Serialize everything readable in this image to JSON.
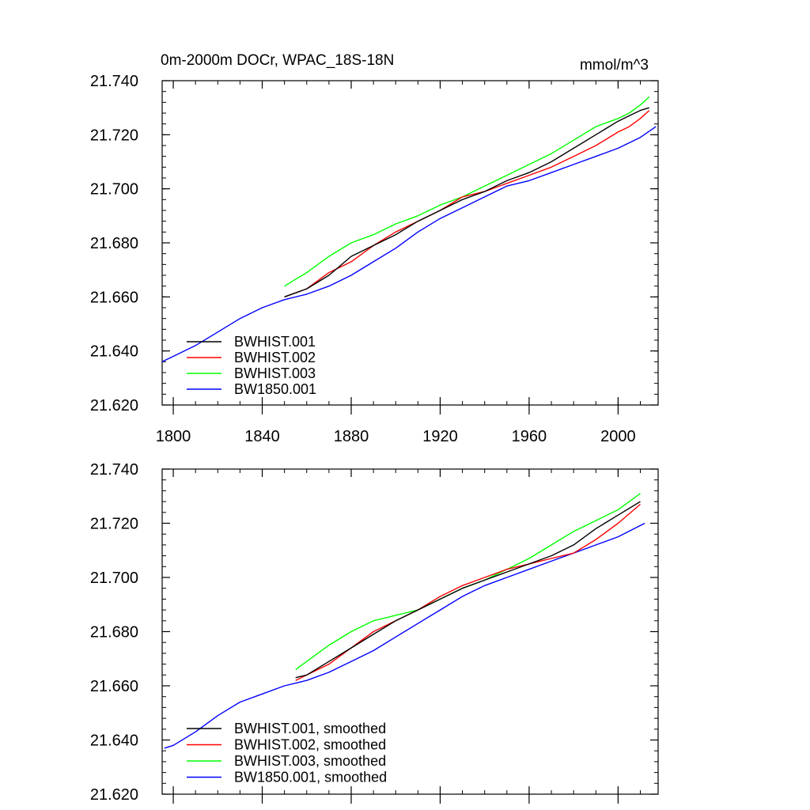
{
  "chart_data": [
    {
      "type": "line",
      "title": "0m-2000m DOCr, WPAC_18S-18N",
      "units": "mmol/m^3",
      "xlim": [
        1795,
        2018
      ],
      "ylim": [
        21.62,
        21.74
      ],
      "xticks": [
        1800,
        1840,
        1880,
        1920,
        1960,
        2000
      ],
      "xtick_labels": [
        "1800",
        "1840",
        "1880",
        "1920",
        "1960",
        "2000"
      ],
      "yticks": [
        21.62,
        21.64,
        21.66,
        21.68,
        21.7,
        21.72,
        21.74
      ],
      "ytick_labels": [
        "21.620",
        "21.640",
        "21.660",
        "21.680",
        "21.700",
        "21.720",
        "21.740"
      ],
      "legend_position": "lower-left",
      "series": [
        {
          "name": "BWHIST.001",
          "color": "#000000",
          "x": [
            1850,
            1860,
            1870,
            1880,
            1890,
            1900,
            1910,
            1920,
            1930,
            1940,
            1950,
            1960,
            1970,
            1980,
            1990,
            2000,
            2005,
            2010,
            2014
          ],
          "y": [
            21.66,
            21.663,
            21.668,
            21.675,
            21.679,
            21.683,
            21.688,
            21.692,
            21.696,
            21.699,
            21.703,
            21.706,
            21.71,
            21.715,
            21.72,
            21.725,
            21.727,
            21.729,
            21.73
          ]
        },
        {
          "name": "BWHIST.002",
          "color": "#ff0000",
          "x": [
            1850,
            1860,
            1870,
            1880,
            1890,
            1900,
            1910,
            1920,
            1930,
            1940,
            1950,
            1960,
            1970,
            1980,
            1990,
            2000,
            2005,
            2010,
            2014
          ],
          "y": [
            21.66,
            21.663,
            21.669,
            21.673,
            21.679,
            21.684,
            21.688,
            21.692,
            21.697,
            21.699,
            21.702,
            21.705,
            21.708,
            21.712,
            21.716,
            21.721,
            21.723,
            21.726,
            21.729
          ]
        },
        {
          "name": "BWHIST.003",
          "color": "#00ff00",
          "x": [
            1850,
            1860,
            1870,
            1880,
            1890,
            1900,
            1910,
            1920,
            1930,
            1940,
            1950,
            1960,
            1970,
            1980,
            1990,
            2000,
            2005,
            2010,
            2014
          ],
          "y": [
            21.664,
            21.669,
            21.675,
            21.68,
            21.683,
            21.687,
            21.69,
            21.694,
            21.697,
            21.701,
            21.705,
            21.709,
            21.713,
            21.718,
            21.723,
            21.726,
            21.728,
            21.731,
            21.734
          ]
        },
        {
          "name": "BW1850.001",
          "color": "#0000ff",
          "x": [
            1795,
            1800,
            1810,
            1820,
            1830,
            1840,
            1850,
            1860,
            1870,
            1880,
            1890,
            1900,
            1910,
            1920,
            1930,
            1940,
            1950,
            1960,
            1970,
            1980,
            1990,
            2000,
            2010,
            2017
          ],
          "y": [
            21.636,
            21.638,
            21.642,
            21.647,
            21.652,
            21.656,
            21.659,
            21.661,
            21.664,
            21.668,
            21.673,
            21.678,
            21.684,
            21.689,
            21.693,
            21.697,
            21.701,
            21.703,
            21.706,
            21.709,
            21.712,
            21.715,
            21.719,
            21.723
          ]
        }
      ]
    },
    {
      "type": "line",
      "title": "",
      "xlim": [
        1795,
        2018
      ],
      "ylim": [
        21.62,
        21.74
      ],
      "xticks": [
        1800,
        1840,
        1880,
        1920,
        1960,
        2000
      ],
      "yticks": [
        21.62,
        21.64,
        21.66,
        21.68,
        21.7,
        21.72,
        21.74
      ],
      "ytick_labels": [
        "21.620",
        "21.640",
        "21.660",
        "21.680",
        "21.700",
        "21.720",
        "21.740"
      ],
      "legend_position": "lower-left",
      "series": [
        {
          "name": "BWHIST.001, smoothed",
          "color": "#000000",
          "x": [
            1855,
            1860,
            1870,
            1880,
            1890,
            1900,
            1910,
            1920,
            1930,
            1940,
            1950,
            1960,
            1970,
            1980,
            1990,
            2000,
            2010
          ],
          "y": [
            21.663,
            21.664,
            21.669,
            21.674,
            21.679,
            21.684,
            21.688,
            21.692,
            21.696,
            21.699,
            21.702,
            21.705,
            21.708,
            21.712,
            21.718,
            21.723,
            21.728
          ]
        },
        {
          "name": "BWHIST.002, smoothed",
          "color": "#ff0000",
          "x": [
            1855,
            1860,
            1870,
            1880,
            1890,
            1900,
            1910,
            1920,
            1930,
            1940,
            1950,
            1960,
            1970,
            1980,
            1990,
            2000,
            2010
          ],
          "y": [
            21.662,
            21.664,
            21.668,
            21.674,
            21.68,
            21.684,
            21.688,
            21.693,
            21.697,
            21.7,
            21.703,
            21.705,
            21.707,
            21.709,
            21.714,
            21.72,
            21.727
          ]
        },
        {
          "name": "BWHIST.003, smoothed",
          "color": "#00ff00",
          "x": [
            1855,
            1860,
            1870,
            1880,
            1890,
            1900,
            1910,
            1920,
            1930,
            1940,
            1950,
            1960,
            1970,
            1980,
            1990,
            2000,
            2010
          ],
          "y": [
            21.666,
            21.669,
            21.675,
            21.68,
            21.684,
            21.686,
            21.688,
            21.692,
            21.696,
            21.699,
            21.703,
            21.707,
            21.712,
            21.717,
            21.721,
            21.725,
            21.731
          ]
        },
        {
          "name": "BW1850.001, smoothed",
          "color": "#0000ff",
          "x": [
            1796,
            1800,
            1810,
            1820,
            1830,
            1840,
            1850,
            1860,
            1870,
            1880,
            1890,
            1900,
            1910,
            1920,
            1930,
            1940,
            1950,
            1960,
            1970,
            1980,
            1990,
            2000,
            2012
          ],
          "y": [
            21.637,
            21.638,
            21.643,
            21.649,
            21.654,
            21.657,
            21.66,
            21.662,
            21.665,
            21.669,
            21.673,
            21.678,
            21.683,
            21.688,
            21.693,
            21.697,
            21.7,
            21.703,
            21.706,
            21.709,
            21.712,
            21.715,
            21.72
          ]
        }
      ]
    }
  ]
}
